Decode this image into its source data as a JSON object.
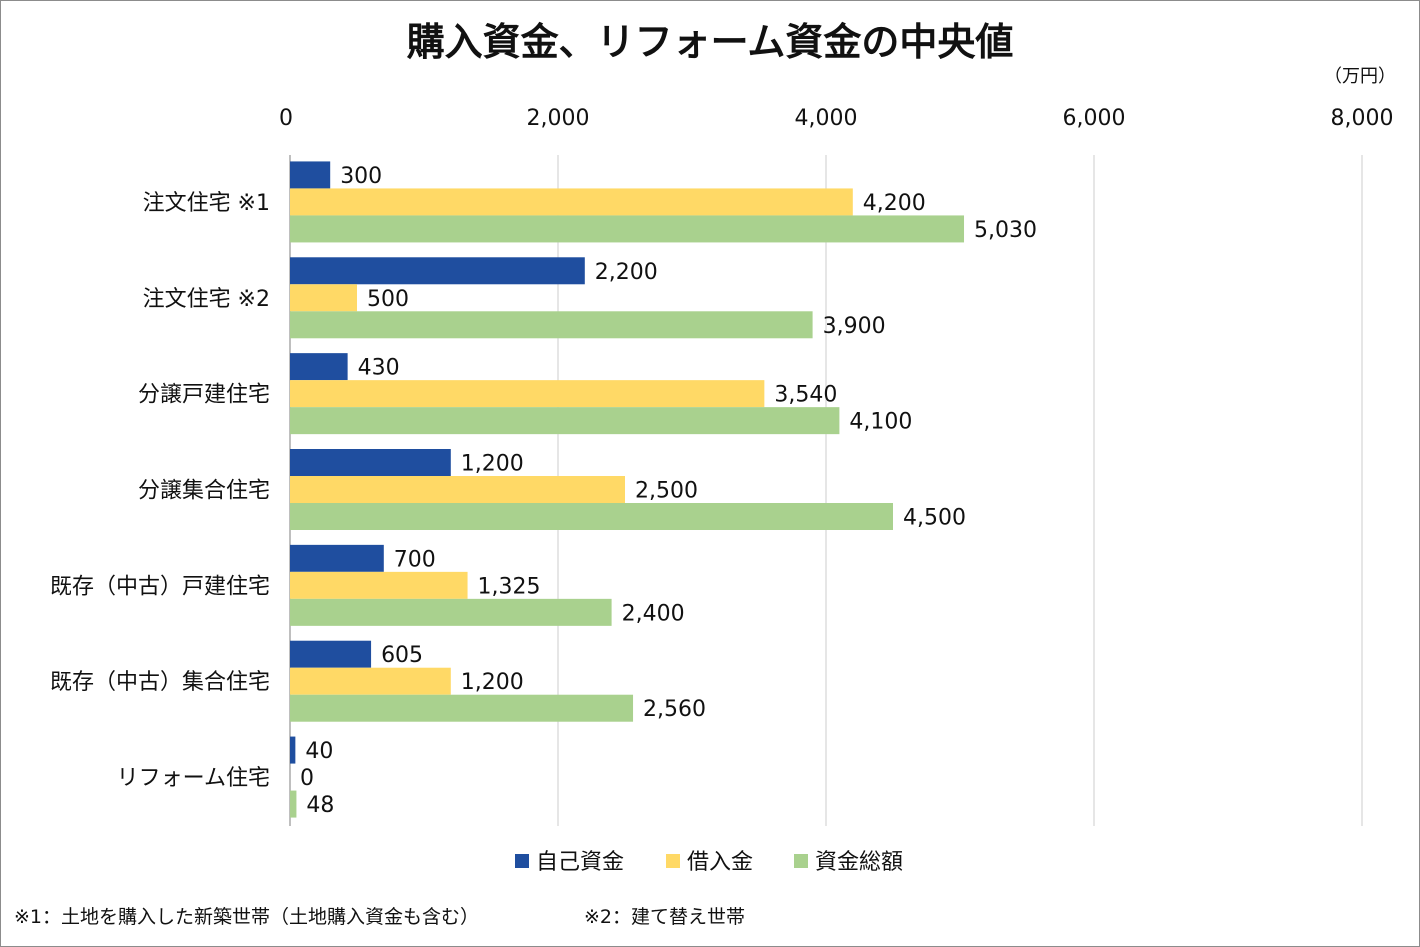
{
  "chart_data": {
    "type": "bar",
    "orientation": "horizontal",
    "title": "購入資金、リフォーム資金の中央値",
    "unit": "（万円）",
    "categories": [
      "注文住宅 ※1",
      "注文住宅 ※2",
      "分譲戸建住宅",
      "分譲集合住宅",
      "既存（中古）戸建住宅",
      "既存（中古）集合住宅",
      "リフォーム住宅"
    ],
    "series": [
      {
        "name": "自己資金",
        "color": "#1f4e9f",
        "values": [
          300,
          2200,
          430,
          1200,
          700,
          605,
          40
        ],
        "labels": [
          "300",
          "2,200",
          "430",
          "1,200",
          "700",
          "605",
          "40"
        ]
      },
      {
        "name": "借入金",
        "color": "#ffd966",
        "values": [
          4200,
          500,
          3540,
          2500,
          1325,
          1200,
          0
        ],
        "labels": [
          "4,200",
          "500",
          "3,540",
          "2,500",
          "1,325",
          "1,200",
          "0"
        ]
      },
      {
        "name": "資金総額",
        "color": "#a9d18e",
        "values": [
          5030,
          3900,
          4100,
          4500,
          2400,
          2560,
          48
        ],
        "labels": [
          "5,030",
          "3,900",
          "4,100",
          "4,500",
          "2,400",
          "2,560",
          "48"
        ]
      }
    ],
    "xlim": [
      0,
      8000
    ],
    "xticks": [
      0,
      2000,
      4000,
      6000,
      8000
    ],
    "xtick_labels": [
      "0",
      "2,000",
      "4,000",
      "6,000",
      "8,000"
    ],
    "grid": true,
    "legend": "bottom",
    "axis_position": "top"
  },
  "footnotes": {
    "note1": "※1：土地を購入した新築世帯（土地購入資金も含む）",
    "note2": "※2：建て替え世帯"
  }
}
